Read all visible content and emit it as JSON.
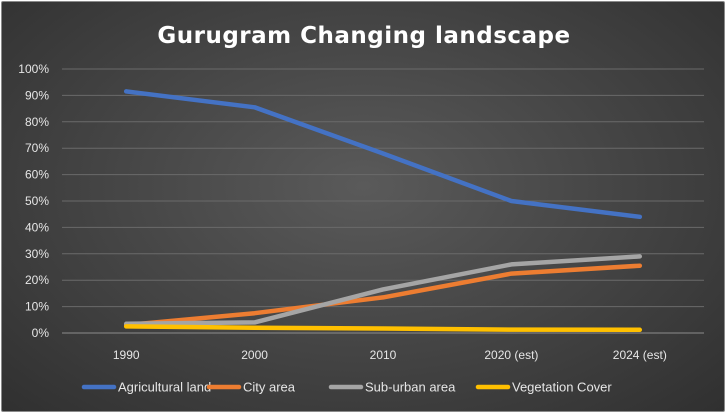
{
  "chart_data": {
    "type": "line",
    "title": "Gurugram Changing landscape",
    "xlabel": "",
    "ylabel": "",
    "categories": [
      "1990",
      "2000",
      "2010",
      "2020 (est)",
      "2024 (est)"
    ],
    "ylim": [
      0,
      1
    ],
    "yticks": [
      0,
      0.1,
      0.2,
      0.3,
      0.4,
      0.5,
      0.6,
      0.7,
      0.8,
      0.9,
      1.0
    ],
    "ytick_labels": [
      "0%",
      "10%",
      "20%",
      "30%",
      "40%",
      "50%",
      "60%",
      "70%",
      "80%",
      "90%",
      "100%"
    ],
    "grid": true,
    "legend_position": "bottom",
    "series": [
      {
        "name": "Agricultural land",
        "color": "#4472C4",
        "values": [
          0.915,
          0.855,
          0.68,
          0.5,
          0.44
        ]
      },
      {
        "name": "City area",
        "color": "#ED7D31",
        "values": [
          0.03,
          0.075,
          0.135,
          0.225,
          0.255
        ]
      },
      {
        "name": "Sub-urban area",
        "color": "#A5A5A5",
        "values": [
          0.035,
          0.04,
          0.165,
          0.26,
          0.29
        ]
      },
      {
        "name": "Vegetation Cover",
        "color": "#FFC000",
        "values": [
          0.025,
          0.02,
          0.017,
          0.013,
          0.012
        ]
      }
    ]
  }
}
